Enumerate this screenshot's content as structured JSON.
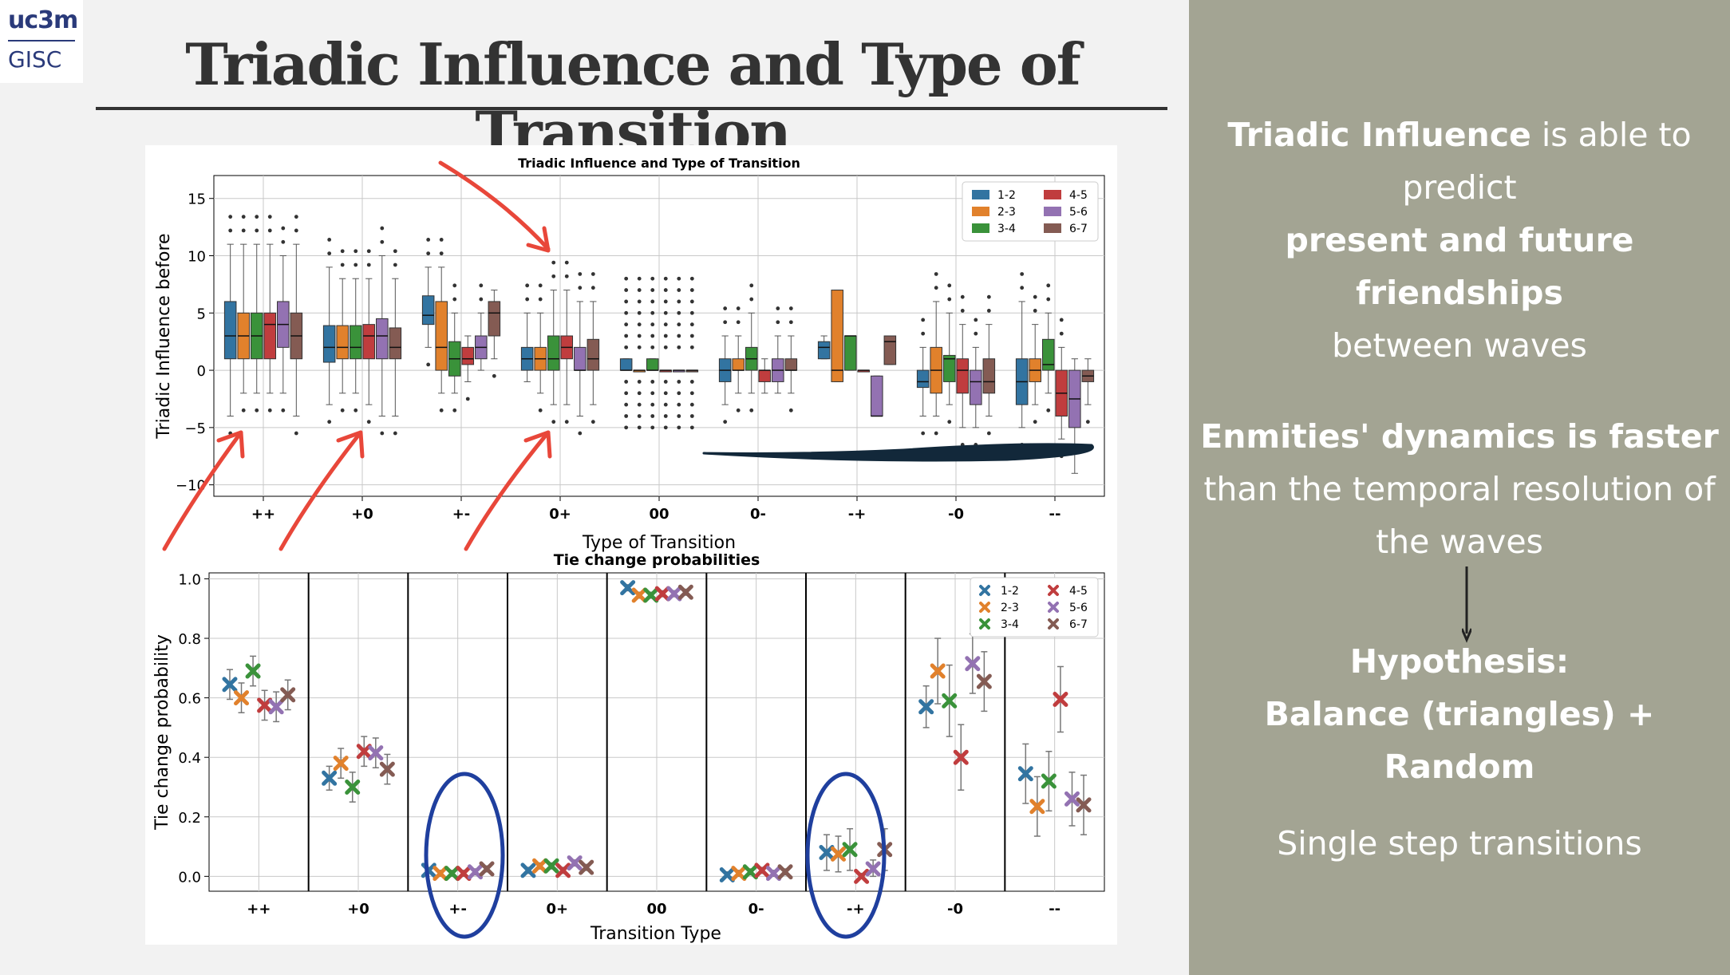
{
  "logo": {
    "top": "uc3m",
    "bottom": "GISC"
  },
  "title": "Triadic Influence and Type of Transition",
  "side": {
    "p1_b1": "Triadic Influence",
    "p1_t1": " is able to predict ",
    "p1_b2": "present and future friendships",
    "p1_t2": "between waves",
    "p2_b1": "Enmities' dynamics is faster",
    "p2_t1": "than the temporal resolution of the waves",
    "p3_b1": "Hypothesis:",
    "p3_b2": "Balance (triangles) + Random",
    "p4": "Single step transitions"
  },
  "colors": {
    "s1": "#3274a1",
    "s2": "#e1812c",
    "s3": "#3a923a",
    "s4": "#c03d3e",
    "s5": "#9372b2",
    "s6": "#845b53",
    "annot_red": "#e8473a",
    "annot_blue": "#1f3f9e",
    "panel": "#a3a493"
  },
  "chart_data": [
    {
      "type": "box",
      "title": "Triadic Influence and Type of Transition",
      "xlabel": "Type of Transition",
      "ylabel": "Triadic Influence before",
      "categories": [
        "++",
        "+0",
        "+-",
        "0+",
        "00",
        "0-",
        "-+",
        "-0",
        "--"
      ],
      "yticks": [
        15,
        10,
        5,
        0,
        -5,
        -10
      ],
      "ylim": [
        -11,
        17
      ],
      "legend": {
        "position": "top-right",
        "entries": [
          "1-2",
          "2-3",
          "3-4",
          "4-5",
          "5-6",
          "6-7"
        ]
      },
      "series": [
        {
          "name": "1-2",
          "boxes": [
            [
              1,
              3,
              6,
              -4,
              11
            ],
            [
              0.7,
              2,
              3.9,
              -3,
              9
            ],
            [
              4,
              4.8,
              6.5,
              2,
              9
            ],
            [
              0,
              1,
              2,
              -1,
              5
            ],
            [
              0,
              0,
              1,
              0,
              1
            ],
            [
              -1,
              0,
              1,
              -3,
              3
            ],
            [
              1,
              2,
              2.5,
              1,
              3
            ],
            [
              -1.5,
              -1,
              0,
              -4,
              2
            ],
            [
              -3,
              -1,
              1,
              -5,
              6
            ]
          ]
        },
        {
          "name": "2-3",
          "boxes": [
            [
              1,
              3,
              5,
              -2,
              11
            ],
            [
              1,
              2,
              3.9,
              -2,
              8
            ],
            [
              0,
              2,
              6,
              -2,
              9
            ],
            [
              0,
              1,
              2,
              -2,
              5
            ],
            [
              0,
              0,
              0,
              0,
              0
            ],
            [
              0,
              0,
              1,
              -2,
              3
            ],
            [
              -1,
              0,
              7,
              -1,
              7
            ],
            [
              -2,
              0,
              2,
              -4,
              6
            ],
            [
              -1,
              0,
              1,
              -3,
              4
            ]
          ]
        },
        {
          "name": "3-4",
          "boxes": [
            [
              1,
              3,
              5,
              -2,
              11
            ],
            [
              1,
              2,
              3.9,
              -2,
              8
            ],
            [
              -0.5,
              1,
              2.5,
              -2,
              5
            ],
            [
              0,
              1,
              3,
              -3,
              7
            ],
            [
              0,
              0,
              1,
              0,
              1
            ],
            [
              0,
              1,
              2,
              -2,
              5
            ],
            [
              0,
              3,
              3,
              0,
              3
            ],
            [
              -1,
              1,
              1.3,
              -3,
              5
            ],
            [
              0,
              0.5,
              2.7,
              -2,
              5
            ]
          ]
        },
        {
          "name": "4-5",
          "boxes": [
            [
              1,
              4,
              5,
              -2,
              11
            ],
            [
              1,
              3,
              4,
              -3,
              8
            ],
            [
              0.5,
              1,
              2,
              -1,
              3
            ],
            [
              1,
              2,
              3,
              -3,
              7
            ],
            [
              0,
              0,
              0,
              0,
              0
            ],
            [
              -1,
              0,
              0,
              -2,
              1
            ],
            [
              0,
              0,
              0,
              0,
              0
            ],
            [
              -2,
              0,
              1,
              -5,
              4
            ],
            [
              -4,
              -2,
              0,
              -6,
              2
            ]
          ]
        },
        {
          "name": "5-6",
          "boxes": [
            [
              2,
              4,
              6,
              -2,
              10
            ],
            [
              1,
              3,
              4.5,
              -4,
              10
            ],
            [
              1,
              2,
              3,
              0,
              5
            ],
            [
              0,
              0,
              2,
              -4,
              6
            ],
            [
              0,
              0,
              0,
              0,
              0
            ],
            [
              -1,
              0,
              1,
              -2,
              3
            ],
            [
              -4,
              -4,
              -0.5,
              -4,
              -0.5
            ],
            [
              -3,
              -1,
              0,
              -5,
              2
            ],
            [
              -5,
              -2.5,
              0,
              -9,
              1
            ]
          ]
        },
        {
          "name": "6-7",
          "boxes": [
            [
              1,
              3,
              5,
              -4,
              11
            ],
            [
              1,
              2,
              3.7,
              -4,
              8
            ],
            [
              3,
              5,
              6,
              1,
              7
            ],
            [
              0,
              1,
              2.7,
              -3,
              6
            ],
            [
              0,
              0,
              0,
              0,
              0
            ],
            [
              0,
              0,
              1,
              -2,
              3
            ],
            [
              0.5,
              2.5,
              3,
              0.5,
              3
            ],
            [
              -2,
              -1,
              1,
              -4,
              4
            ],
            [
              -1,
              -0.5,
              0,
              -3,
              1
            ]
          ]
        }
      ]
    },
    {
      "type": "scatter",
      "title": "Tie change probabilities",
      "xlabel": "Transition Type",
      "ylabel": "Tie change probability",
      "categories": [
        "++",
        "+0",
        "+-",
        "0+",
        "00",
        "0-",
        "-+",
        "-0",
        "--"
      ],
      "yticks": [
        1.0,
        0.8,
        0.6,
        0.4,
        0.2,
        0.0
      ],
      "ylim": [
        -0.05,
        1.02
      ],
      "legend": {
        "position": "top-right",
        "entries": [
          "1-2",
          "2-3",
          "3-4",
          "4-5",
          "5-6",
          "6-7"
        ]
      },
      "series": [
        {
          "name": "1-2",
          "values": [
            0.645,
            0.33,
            0.02,
            0.02,
            0.97,
            0.005,
            0.08,
            0.57,
            0.345
          ],
          "err": [
            0.05,
            0.04,
            0.01,
            0.01,
            0.01,
            0.01,
            0.06,
            0.07,
            0.1
          ]
        },
        {
          "name": "2-3",
          "values": [
            0.6,
            0.38,
            0.01,
            0.035,
            0.945,
            0.01,
            0.075,
            0.69,
            0.235
          ],
          "err": [
            0.05,
            0.05,
            0.01,
            0.01,
            0.01,
            0.01,
            0.06,
            0.11,
            0.1
          ]
        },
        {
          "name": "3-4",
          "values": [
            0.69,
            0.3,
            0.01,
            0.035,
            0.945,
            0.015,
            0.09,
            0.59,
            0.32
          ],
          "err": [
            0.05,
            0.05,
            0.01,
            0.01,
            0.01,
            0.01,
            0.07,
            0.12,
            0.1
          ]
        },
        {
          "name": "4-5",
          "values": [
            0.575,
            0.42,
            0.01,
            0.02,
            0.95,
            0.02,
            0.0,
            0.4,
            0.595
          ],
          "err": [
            0.05,
            0.05,
            0.01,
            0.01,
            0.01,
            0.01,
            0.01,
            0.11,
            0.11
          ]
        },
        {
          "name": "5-6",
          "values": [
            0.57,
            0.415,
            0.015,
            0.045,
            0.95,
            0.01,
            0.025,
            0.715,
            0.26
          ],
          "err": [
            0.05,
            0.05,
            0.01,
            0.01,
            0.01,
            0.01,
            0.03,
            0.1,
            0.09
          ]
        },
        {
          "name": "6-7",
          "values": [
            0.61,
            0.36,
            0.025,
            0.03,
            0.955,
            0.015,
            0.09,
            0.655,
            0.24
          ],
          "err": [
            0.05,
            0.05,
            0.01,
            0.01,
            0.01,
            0.01,
            0.07,
            0.1,
            0.1
          ]
        }
      ]
    }
  ]
}
